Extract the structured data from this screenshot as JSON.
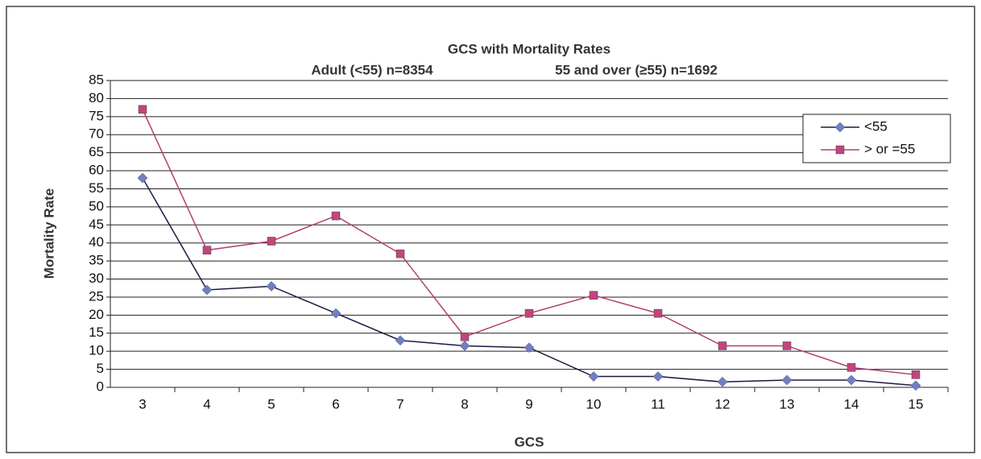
{
  "chart_data": {
    "type": "line",
    "title": "GCS with Mortality Rates",
    "subtitle": [
      "Adult (<55) n=8354",
      "55 and over (≥55) n=1692"
    ],
    "x_label": "GCS",
    "y_label": "Mortality Rate",
    "categories": [
      3,
      4,
      5,
      6,
      7,
      8,
      9,
      10,
      11,
      12,
      13,
      14,
      15
    ],
    "series": [
      {
        "name": "<55",
        "color": "#6f7fc8",
        "line_color": "#1a1a40",
        "marker": "diamond",
        "values": [
          58,
          27,
          28,
          20.5,
          13,
          11.5,
          11,
          3,
          3,
          1.5,
          2,
          2,
          0.5
        ]
      },
      {
        "name": "> or =55",
        "color": "#c2457e",
        "line_color": "#b2406e",
        "marker": "square",
        "values": [
          77,
          38,
          40.5,
          47.5,
          37,
          14,
          20.5,
          25.5,
          20.5,
          11.5,
          11.5,
          5.5,
          3.5
        ]
      }
    ],
    "ylim": [
      0,
      85
    ],
    "yticks": [
      0,
      5,
      10,
      15,
      20,
      25,
      30,
      35,
      40,
      45,
      50,
      55,
      60,
      65,
      70,
      75,
      80,
      85
    ],
    "grid": true,
    "legend": "top-right"
  }
}
